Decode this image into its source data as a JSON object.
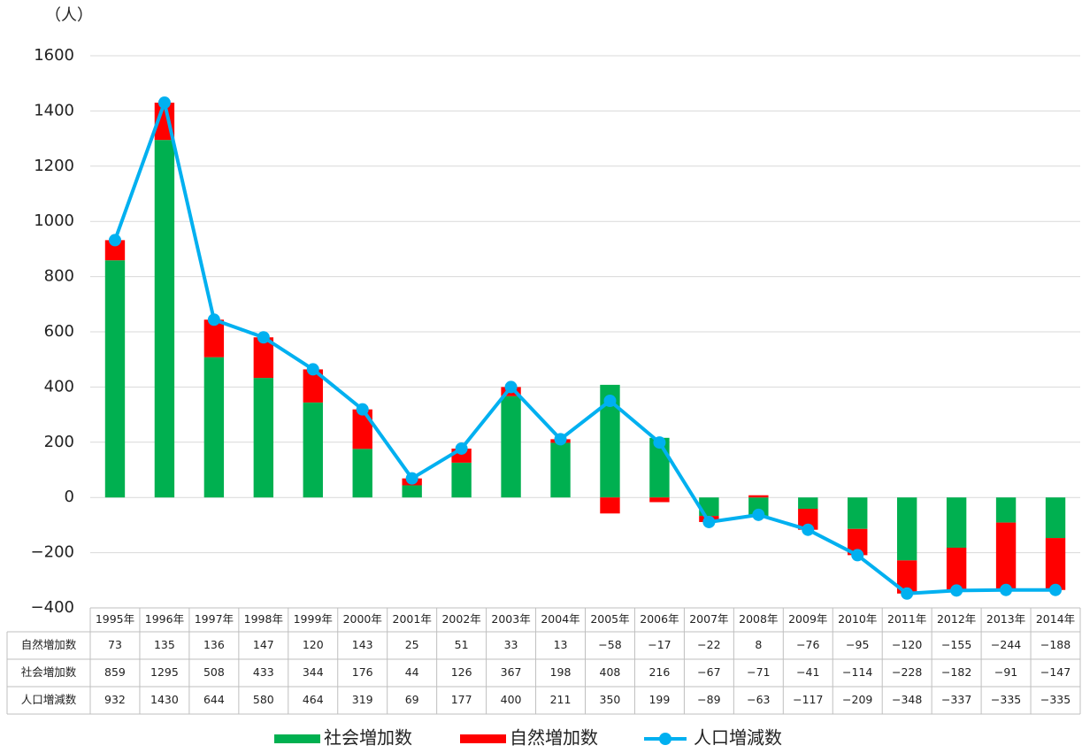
{
  "chart_data": {
    "type": "bar",
    "stacked": true,
    "y_label": "（人）",
    "categories": [
      "1995年",
      "1996年",
      "1997年",
      "1998年",
      "1999年",
      "2000年",
      "2001年",
      "2002年",
      "2003年",
      "2004年",
      "2005年",
      "2006年",
      "2007年",
      "2008年",
      "2009年",
      "2010年",
      "2011年",
      "2012年",
      "2013年",
      "2014年"
    ],
    "series": [
      {
        "name": "自然増加数",
        "color": "#ff0000",
        "type": "bar",
        "values": [
          73,
          135,
          136,
          147,
          120,
          143,
          25,
          51,
          33,
          13,
          -58,
          -17,
          -22,
          8,
          -76,
          -95,
          -120,
          -155,
          -244,
          -188
        ],
        "value_labels": [
          "73",
          "135",
          "136",
          "147",
          "120",
          "143",
          "25",
          "51",
          "33",
          "13",
          "−58",
          "−17",
          "−22",
          "8",
          "−76",
          "−95",
          "−120",
          "−155",
          "−244",
          "−188"
        ]
      },
      {
        "name": "社会増加数",
        "color": "#00b050",
        "type": "bar",
        "values": [
          859,
          1295,
          508,
          433,
          344,
          176,
          44,
          126,
          367,
          198,
          408,
          216,
          -67,
          -71,
          -41,
          -114,
          -228,
          -182,
          -91,
          -147
        ],
        "value_labels": [
          "859",
          "1295",
          "508",
          "433",
          "344",
          "176",
          "44",
          "126",
          "367",
          "198",
          "408",
          "216",
          "−67",
          "−71",
          "−41",
          "−114",
          "−228",
          "−182",
          "−91",
          "−147"
        ]
      },
      {
        "name": "人口増減数",
        "color": "#00b0f0",
        "type": "line",
        "values": [
          932,
          1430,
          644,
          580,
          464,
          319,
          69,
          177,
          400,
          211,
          350,
          199,
          -89,
          -63,
          -117,
          -209,
          -348,
          -337,
          -335,
          -335
        ],
        "value_labels": [
          "932",
          "1430",
          "644",
          "580",
          "464",
          "319",
          "69",
          "177",
          "400",
          "211",
          "350",
          "199",
          "−89",
          "−63",
          "−117",
          "−209",
          "−348",
          "−337",
          "−335",
          "−335"
        ]
      }
    ],
    "ylim": [
      -400,
      1600
    ],
    "yticks": [
      {
        "value": -400,
        "label": "−400"
      },
      {
        "value": -200,
        "label": "−200"
      },
      0,
      200,
      400,
      600,
      800,
      1000,
      1200,
      1400,
      1600
    ],
    "grid": true
  }
}
